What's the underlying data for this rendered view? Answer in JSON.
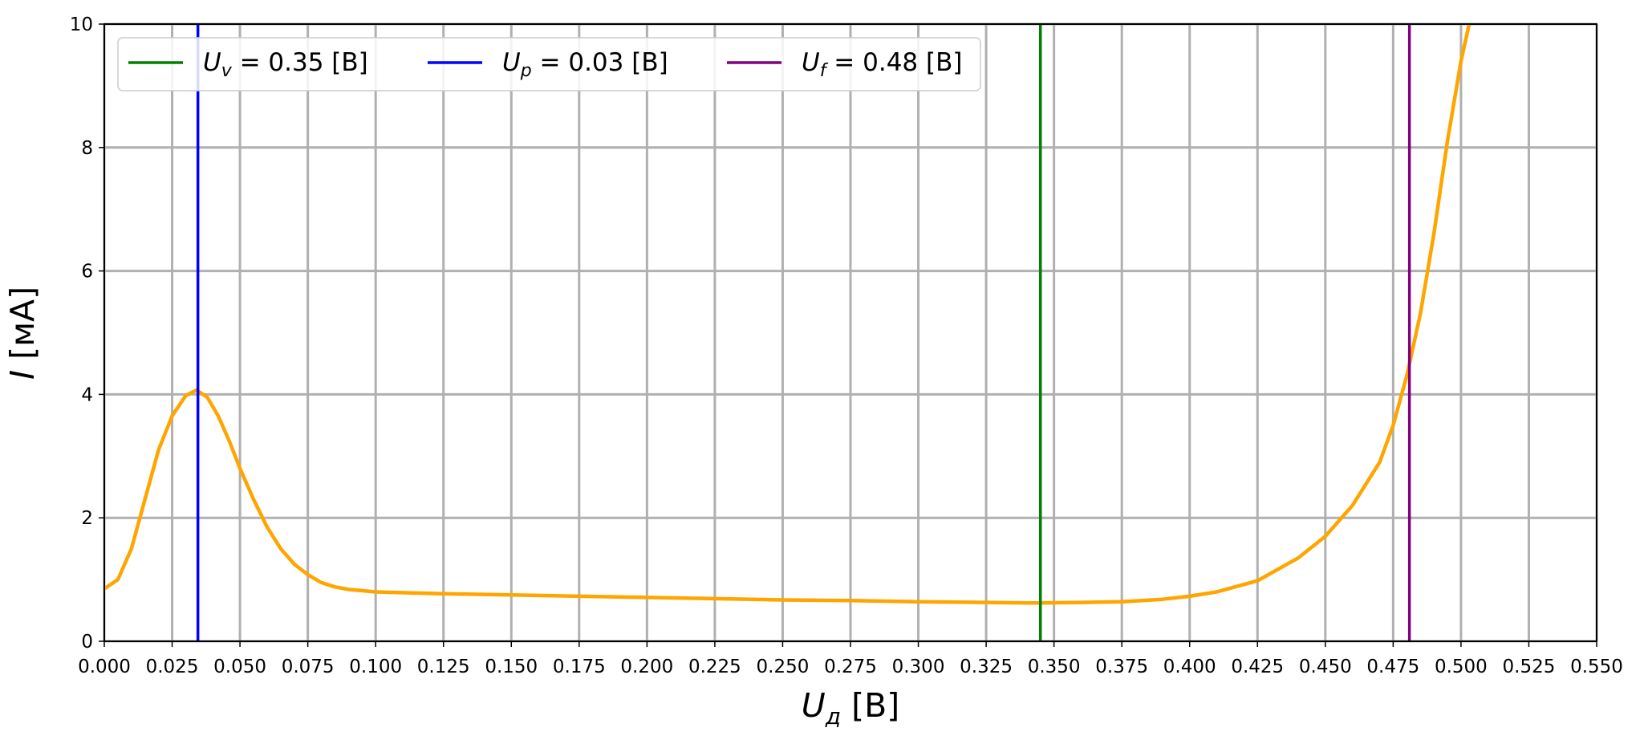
{
  "chart_data": {
    "type": "line",
    "x_range": [
      0,
      0.55
    ],
    "y_range": [
      0,
      10
    ],
    "x_ticks": [
      "0.000",
      "0.025",
      "0.050",
      "0.075",
      "0.100",
      "0.125",
      "0.150",
      "0.175",
      "0.200",
      "0.225",
      "0.250",
      "0.275",
      "0.300",
      "0.325",
      "0.350",
      "0.375",
      "0.400",
      "0.425",
      "0.450",
      "0.475",
      "0.500",
      "0.525",
      "0.550"
    ],
    "y_ticks": [
      "0",
      "2",
      "4",
      "6",
      "8",
      "10"
    ],
    "xlabel": {
      "main": "U",
      "sub": "д",
      "unit": "[B]"
    },
    "ylabel": {
      "main": "I",
      "unit": "[мА]"
    },
    "grid": true,
    "legend_position": "upper-left",
    "curve": {
      "color": "#FFA500",
      "x": [
        0.0,
        0.005,
        0.01,
        0.015,
        0.02,
        0.025,
        0.03,
        0.034,
        0.038,
        0.042,
        0.046,
        0.05,
        0.055,
        0.06,
        0.065,
        0.07,
        0.075,
        0.08,
        0.085,
        0.09,
        0.1,
        0.125,
        0.15,
        0.175,
        0.2,
        0.225,
        0.25,
        0.275,
        0.3,
        0.325,
        0.34,
        0.345,
        0.36,
        0.375,
        0.39,
        0.4,
        0.41,
        0.425,
        0.44,
        0.45,
        0.46,
        0.47,
        0.475,
        0.48,
        0.485,
        0.49,
        0.495,
        0.5,
        0.503
      ],
      "y": [
        0.85,
        1.0,
        1.5,
        2.3,
        3.1,
        3.65,
        3.98,
        4.07,
        3.95,
        3.65,
        3.25,
        2.8,
        2.3,
        1.85,
        1.5,
        1.25,
        1.08,
        0.95,
        0.88,
        0.84,
        0.8,
        0.77,
        0.75,
        0.73,
        0.71,
        0.69,
        0.67,
        0.66,
        0.64,
        0.63,
        0.62,
        0.62,
        0.63,
        0.64,
        0.68,
        0.73,
        0.8,
        0.98,
        1.35,
        1.7,
        2.2,
        2.9,
        3.5,
        4.3,
        5.3,
        6.6,
        8.1,
        9.4,
        10.0
      ]
    },
    "series": [
      {
        "name_main": "U",
        "name_sub": "v",
        "value_text": " = 0.35 [B]",
        "x": 0.345,
        "color": "#008000"
      },
      {
        "name_main": "U",
        "name_sub": "p",
        "value_text": " = 0.03 [B]",
        "x": 0.0345,
        "color": "#0000FF"
      },
      {
        "name_main": "U",
        "name_sub": "f",
        "value_text": " = 0.48 [B]",
        "x": 0.481,
        "color": "#800080"
      }
    ],
    "colors": {
      "grid": "#b0b0b0",
      "axes": "#000000"
    }
  }
}
